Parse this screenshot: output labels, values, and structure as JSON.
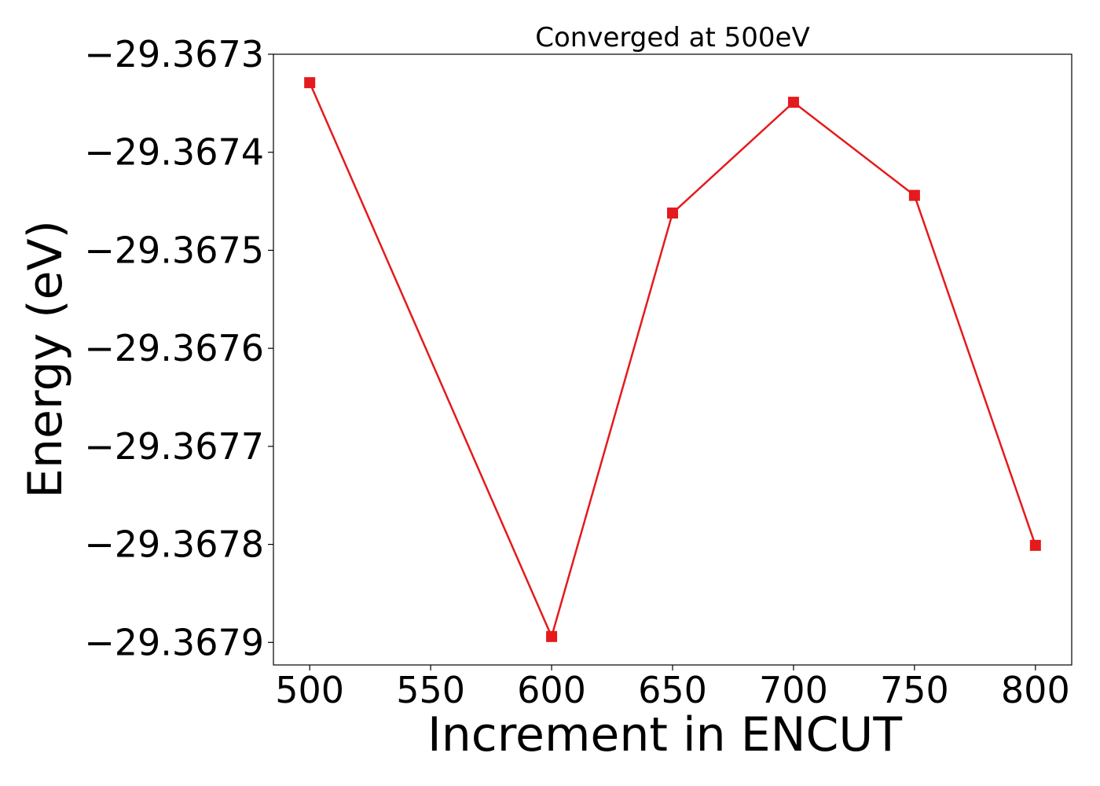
{
  "chart_data": {
    "type": "line",
    "title": "Converged at 500eV",
    "xlabel": "Increment in ENCUT",
    "ylabel": "Energy (eV)",
    "x": [
      500,
      600,
      650,
      700,
      750,
      800
    ],
    "series": [
      {
        "values": [
          -29.367329,
          -29.367894,
          -29.367462,
          -29.367349,
          -29.367444,
          -29.367801
        ],
        "color": "#e41a1c",
        "marker": "square"
      }
    ],
    "xticks": [
      500,
      550,
      600,
      650,
      700,
      750,
      800
    ],
    "xtick_labels": [
      "500",
      "550",
      "600",
      "650",
      "700",
      "750",
      "800"
    ],
    "yticks": [
      -29.3673,
      -29.3674,
      -29.3675,
      -29.3676,
      -29.3677,
      -29.3678,
      -29.3679
    ],
    "ytick_labels": [
      "−29.3673",
      "−29.3674",
      "−29.3675",
      "−29.3676",
      "−29.3677",
      "−29.3678",
      "−29.3679"
    ],
    "xlim": [
      485,
      815
    ],
    "ylim": [
      -29.367923,
      -29.3673
    ],
    "grid": false,
    "legend": false
  }
}
